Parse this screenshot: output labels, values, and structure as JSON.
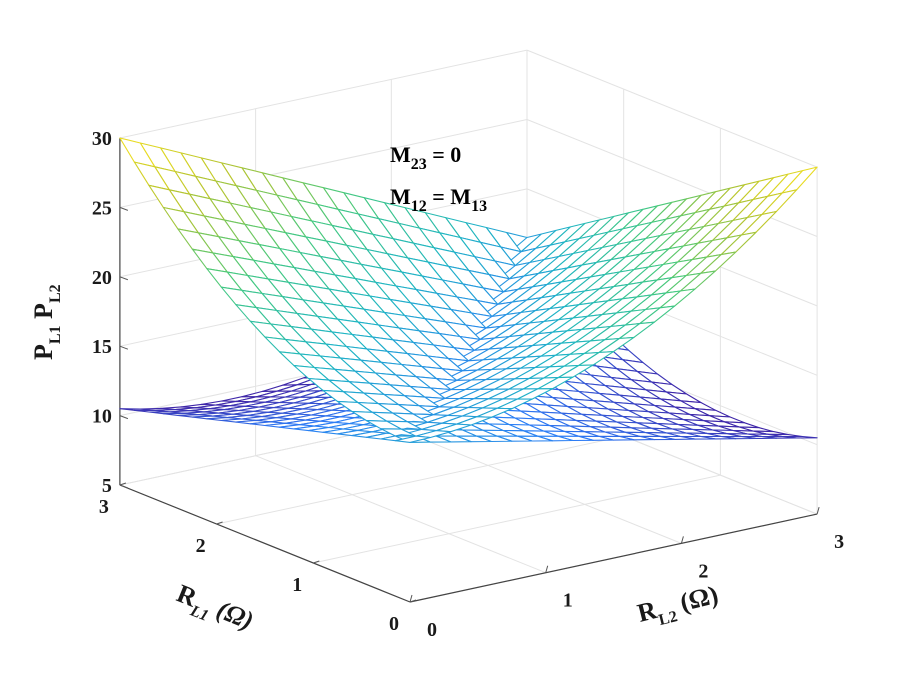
{
  "chart_data": {
    "type": "surface-mesh-3d",
    "title": "",
    "xlabel": {
      "main": "R",
      "sub": "L1",
      "unit": " (Ω)"
    },
    "ylabel": {
      "main": "R",
      "sub": "L2",
      "unit": " (Ω)"
    },
    "zlabel": {
      "p1": "P",
      "p1_sub": "L1",
      "p2": "P",
      "p2_sub": "L2"
    },
    "xlim": [
      0,
      3
    ],
    "ylim": [
      0,
      3
    ],
    "zlim": [
      5,
      30
    ],
    "xticks": [
      0,
      1,
      2,
      3
    ],
    "yticks": [
      0,
      1,
      2,
      3
    ],
    "zticks": [
      5,
      10,
      15,
      20,
      25,
      30
    ],
    "grid": true,
    "grid_resolution": 20,
    "colormap": [
      "#3e26a8",
      "#2d7df7",
      "#1fb5c4",
      "#44c97f",
      "#b5c42f",
      "#f9e31c"
    ],
    "corner_values": {
      "p00": 16.5,
      "p_high_corner": 30,
      "p_low_corner": 10.5
    },
    "series": [
      {
        "description": "PL1 surface: increases with RL1, decreases with RL2",
        "corners": {
          "RL1_0_RL2_0": 16.5,
          "RL1_3_RL2_0": 30,
          "RL1_0_RL2_3": 10.5,
          "RL1_3_RL2_3": 16.5
        }
      },
      {
        "description": "PL2 surface: increases with RL2, decreases with RL1",
        "corners": {
          "RL1_0_RL2_0": 16.5,
          "RL1_0_RL2_3": 30,
          "RL1_3_RL2_0": 10.5,
          "RL1_3_RL2_3": 16.5
        }
      }
    ],
    "annotations": [
      {
        "parts": [
          "M",
          "23",
          " = 0"
        ]
      },
      {
        "parts": [
          "M",
          "12",
          " = M",
          "13"
        ]
      }
    ]
  }
}
